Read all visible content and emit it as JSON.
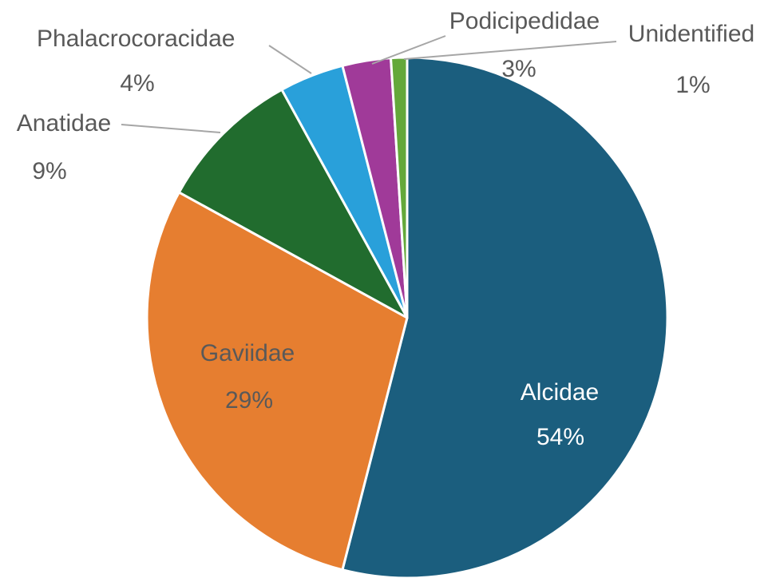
{
  "chart_data": {
    "type": "pie",
    "title": "",
    "direction": "clockwise",
    "start_angle_deg": 0,
    "unit": "percent",
    "legend_position": "none",
    "background": "#FFFFFF",
    "slice_border_color": "#FFFFFF",
    "leader_line_color": "#A6A6A6",
    "label_gray": "#595959",
    "categories": [
      "Alcidae",
      "Gaviidae",
      "Anatidae",
      "Phalacrocoracidae",
      "Podicipedidae",
      "Unidentified"
    ],
    "values": [
      54,
      29,
      9,
      4,
      3,
      1
    ],
    "slices": [
      {
        "name": "Alcidae",
        "value": 54,
        "pct_label": "54%",
        "color": "#1B5E7E",
        "label_placement": "inside",
        "label_color": "#FFFFFF"
      },
      {
        "name": "Gaviidae",
        "value": 29,
        "pct_label": "29%",
        "color": "#E67E30",
        "label_placement": "inside",
        "label_color": "#595959"
      },
      {
        "name": "Anatidae",
        "value": 9,
        "pct_label": "9%",
        "color": "#216C2E",
        "label_placement": "outside",
        "label_color": "#595959"
      },
      {
        "name": "Phalacrocoracidae",
        "value": 4,
        "pct_label": "4%",
        "color": "#29A0DA",
        "label_placement": "outside",
        "label_color": "#595959"
      },
      {
        "name": "Podicipedidae",
        "value": 3,
        "pct_label": "3%",
        "color": "#A03A99",
        "label_placement": "outside",
        "label_color": "#595959"
      },
      {
        "name": "Unidentified",
        "value": 1,
        "pct_label": "1%",
        "color": "#64A83A",
        "label_placement": "outside",
        "label_color": "#595959"
      }
    ]
  }
}
